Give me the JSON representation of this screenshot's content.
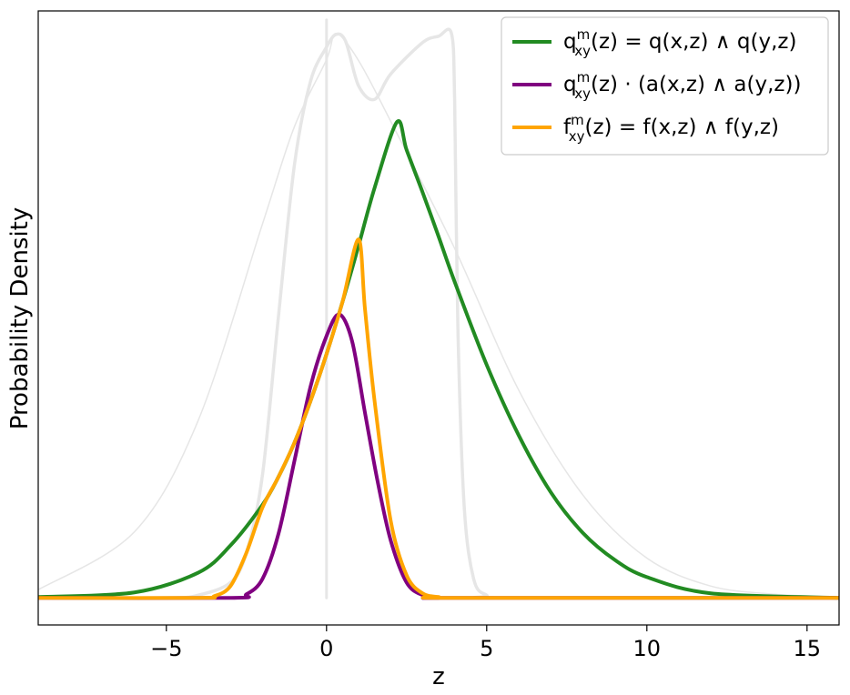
{
  "chart_data": {
    "type": "line",
    "xlabel": "z",
    "ylabel": "Probability Density",
    "xlim": [
      -9,
      16
    ],
    "ylim": [
      -0.03,
      0.65
    ],
    "xticks": [
      -5,
      0,
      5,
      10,
      15
    ],
    "xtick_labels": [
      "−5",
      "0",
      "5",
      "10",
      "15"
    ],
    "yticks": [],
    "grid": false,
    "legend_position": "top-right",
    "series": [
      {
        "name": "q^m_xy(z) = q(x,z) ∧ q(y,z)",
        "legend": {
          "main": "q",
          "sup": "m",
          "sub": "xy",
          "rest": "(z) = q(x,z) ∧ q(y,z)"
        },
        "color": "#228B22",
        "role": "main",
        "x": [
          -9,
          -6,
          -4,
          -3,
          -2,
          -1.5,
          -1,
          -0.5,
          0,
          0.5,
          1,
          1.5,
          2.2,
          2.5,
          3,
          3.5,
          4,
          5,
          6,
          7,
          8,
          9,
          10,
          12,
          16
        ],
        "y": [
          0.001,
          0.006,
          0.028,
          0.058,
          0.103,
          0.134,
          0.172,
          0.218,
          0.27,
          0.328,
          0.39,
          0.454,
          0.527,
          0.496,
          0.449,
          0.4,
          0.35,
          0.258,
          0.18,
          0.117,
          0.072,
          0.042,
          0.023,
          0.005,
          0.0
        ]
      },
      {
        "name": "q^m_xy(z) · (a(x,z) ∧ a(y,z))",
        "legend": {
          "main": "q",
          "sup": "m",
          "sub": "xy",
          "rest": "(z) · (a(x,z) ∧ a(y,z))"
        },
        "color": "#800080",
        "role": "main",
        "x": [
          -9,
          -3,
          -2.5,
          -2,
          -1.5,
          -1,
          -0.5,
          0,
          0.4,
          0.8,
          1.2,
          1.6,
          2,
          2.5,
          3,
          3.5,
          4,
          16
        ],
        "y": [
          0.0,
          0.0,
          0.004,
          0.021,
          0.071,
          0.152,
          0.234,
          0.29,
          0.314,
          0.284,
          0.205,
          0.128,
          0.064,
          0.017,
          0.003,
          0.0,
          0.0,
          0.0
        ]
      },
      {
        "name": "f^m_xy(z) = f(x,z) ∧ f(y,z)",
        "legend": {
          "main": "f",
          "sup": "m",
          "sub": "xy",
          "rest": "(z) = f(x,z) ∧ f(y,z)"
        },
        "color": "#FFA500",
        "role": "main",
        "x": [
          -9,
          -4,
          -3.5,
          -3,
          -2.5,
          -2,
          -1.5,
          -1,
          -0.5,
          0,
          0.5,
          1.0,
          1.2,
          1.5,
          2,
          2.5,
          3,
          3.5,
          4,
          16
        ],
        "y": [
          0.0,
          0.0,
          0.002,
          0.013,
          0.05,
          0.1,
          0.134,
          0.172,
          0.218,
          0.27,
          0.328,
          0.397,
          0.32,
          0.218,
          0.086,
          0.025,
          0.005,
          0.001,
          0.0,
          0.0
        ]
      },
      {
        "color": "#e6e6e6",
        "role": "background",
        "width": 1.5,
        "x": [
          -9,
          -6,
          -4,
          -2,
          -1,
          0,
          0.3,
          1,
          2,
          4,
          6,
          8,
          10,
          12,
          14,
          16
        ],
        "y": [
          0.009,
          0.073,
          0.197,
          0.414,
          0.522,
          0.596,
          0.625,
          0.595,
          0.528,
          0.387,
          0.23,
          0.114,
          0.044,
          0.013,
          0.004,
          0.001
        ]
      },
      {
        "color": "#e6e6e6",
        "role": "background",
        "width": 3.5,
        "x": [
          -9,
          -5,
          -4,
          -3,
          -2.5,
          -2,
          -1.5,
          -1,
          -0.5,
          0,
          0.3,
          0.6,
          1,
          1.5,
          2,
          3,
          3.5,
          3.9,
          4.0,
          4.1,
          4.3,
          4.6,
          5,
          5.5,
          16
        ],
        "y": [
          0.0,
          0.0,
          0.003,
          0.017,
          0.05,
          0.136,
          0.312,
          0.48,
          0.572,
          0.61,
          0.624,
          0.616,
          0.567,
          0.552,
          0.58,
          0.615,
          0.622,
          0.625,
          0.55,
          0.3,
          0.1,
          0.02,
          0.003,
          0.0,
          0.0
        ]
      },
      {
        "color": "#e6e6e6",
        "role": "background-vline",
        "width": 3,
        "x": [
          0,
          0
        ],
        "y": [
          0.0,
          0.64
        ]
      }
    ]
  }
}
